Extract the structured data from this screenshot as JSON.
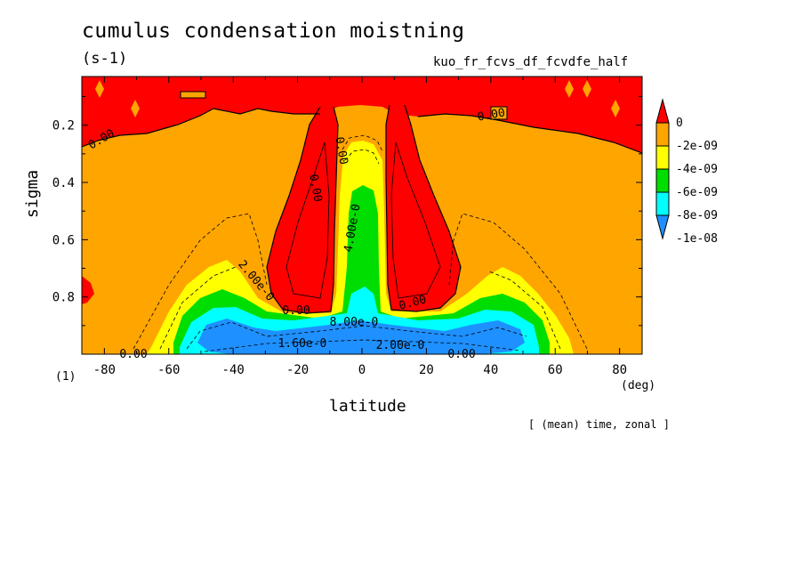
{
  "chart_data": {
    "type": "heatmap",
    "title": "cumulus condensation moistning",
    "units": "(s-1)",
    "run_name": "kuo_fr_fcvs_df_fcvdfe_half",
    "xlabel": "latitude",
    "x_units": "(deg)",
    "ylabel": "sigma",
    "axis_corner_label": "(1)",
    "xlim": [
      -87,
      87
    ],
    "ylim": [
      1.0,
      0.03
    ],
    "xticks": [
      -80,
      -60,
      -40,
      -20,
      0,
      20,
      40,
      60,
      80
    ],
    "yticks": [
      0.2,
      0.4,
      0.6,
      0.8
    ],
    "footnote": "[ (mean) time, zonal ]",
    "colorbar": {
      "levels": [
        "0",
        "-2e-09",
        "-4e-09",
        "-6e-09",
        "-8e-09",
        "-1e-08"
      ],
      "colors": [
        "#ff0000",
        "#ffa500",
        "#ffff00",
        "#00dd00",
        "#00ffff",
        "#1e90ff"
      ]
    },
    "contour_labels": [
      "0.00",
      "0.00",
      "0.00",
      "0.00",
      "0.00",
      "0.00",
      "0.00",
      "2.00e-0",
      "4.00e-0",
      "8.00e-0",
      "1.60e-0",
      "2.00e-0",
      "0.00"
    ]
  }
}
